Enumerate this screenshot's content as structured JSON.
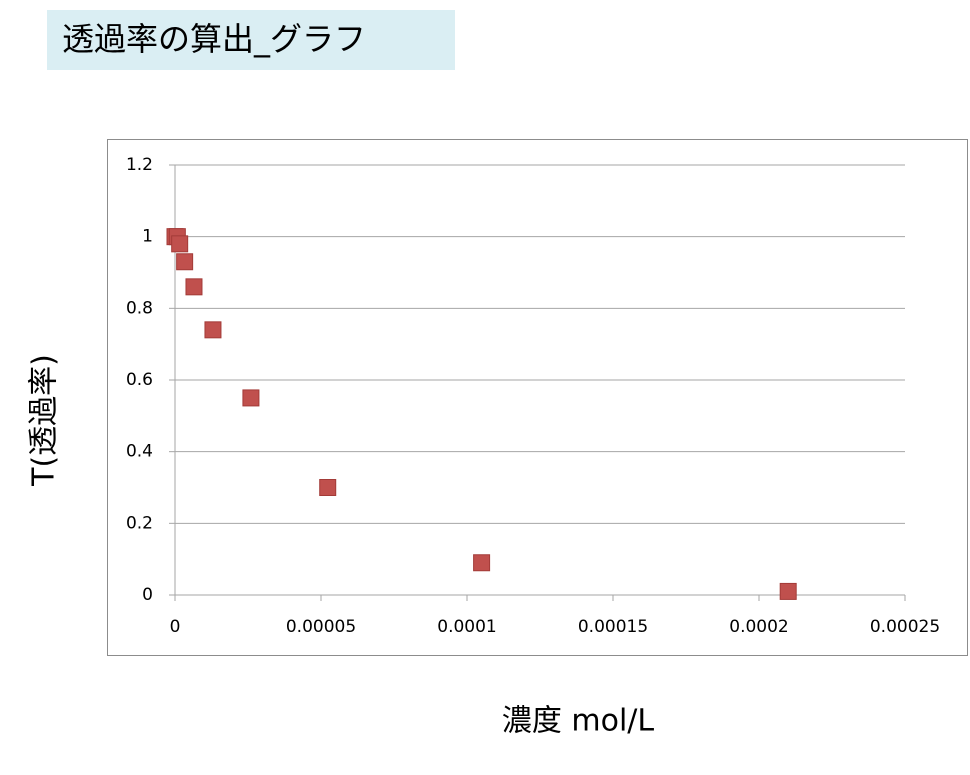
{
  "title": "透過率の算出_グラフ",
  "chart_data": {
    "type": "scatter",
    "xlabel": "濃度 mol/L",
    "ylabel": "T(透過率)",
    "x": [
      0,
      8e-07,
      1.6e-06,
      3.3e-06,
      6.5e-06,
      1.3e-05,
      2.6e-05,
      5.23e-05,
      0.000105,
      0.00021
    ],
    "values": [
      1.0,
      1.0,
      0.98,
      0.93,
      0.86,
      0.74,
      0.55,
      0.3,
      0.09,
      0.01
    ],
    "color": "#c0504d",
    "xlim": [
      0,
      0.00025
    ],
    "xticks": [
      0,
      5e-05,
      0.0001,
      0.00015,
      0.0002,
      0.00025
    ],
    "ylim": [
      0,
      1.2
    ],
    "yticks": [
      0,
      0.2,
      0.4,
      0.6,
      0.8,
      1,
      1.2
    ],
    "grid": true
  }
}
